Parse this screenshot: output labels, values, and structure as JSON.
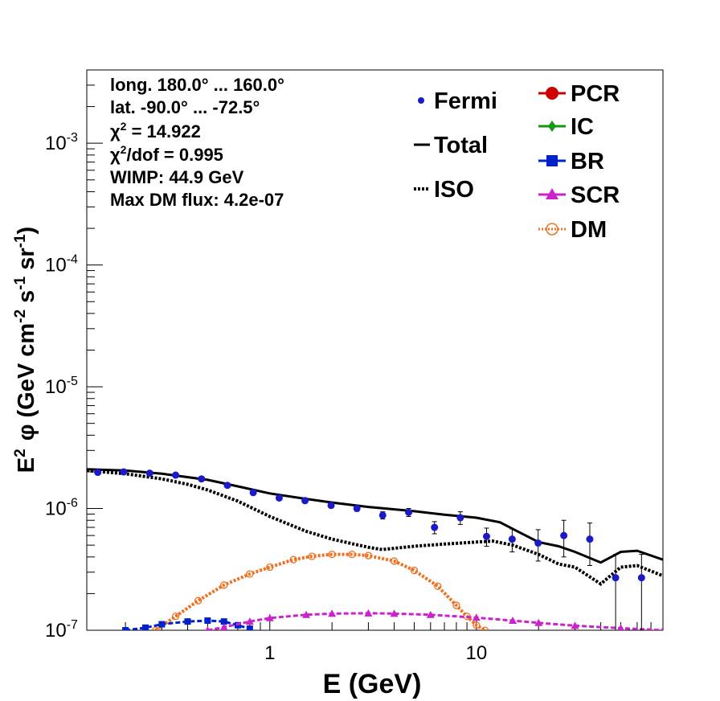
{
  "chart_data": {
    "type": "scatter",
    "title": "",
    "xlabel": "E (GeV)",
    "ylabel_parts": {
      "pre": "E",
      "sup1": "2",
      "phi": "φ (GeV cm",
      "sup2": "-2",
      "mid1": " s",
      "sup3": "-1",
      "mid2": " sr",
      "sup4": "-1",
      "end": ")"
    },
    "xscale": "log",
    "yscale": "log",
    "xlim": [
      0.13,
      80
    ],
    "ylim": [
      1e-07,
      0.004
    ],
    "x_ticks": [
      {
        "value": 1,
        "label": "1"
      },
      {
        "value": 10,
        "label": "10"
      }
    ],
    "y_ticks": [
      {
        "value": 1e-07,
        "base": "10",
        "exp": "-7"
      },
      {
        "value": 1e-06,
        "base": "10",
        "exp": "-6"
      },
      {
        "value": 1e-05,
        "base": "10",
        "exp": "-5"
      },
      {
        "value": 0.0001,
        "base": "10",
        "exp": "-4"
      },
      {
        "value": 0.001,
        "base": "10",
        "exp": "-3"
      }
    ],
    "info": {
      "line1": "long. 180.0° ... 160.0°",
      "line2": "lat. -90.0° ... -72.5°",
      "chi2_pre": "χ",
      "chi2_sup": "2",
      "chi2_post": " = 14.922",
      "chidof_pre": "χ",
      "chidof_sup": "2",
      "chidof_post": "/dof = 0.995",
      "line5": "WIMP: 44.9 GeV",
      "line6": "Max DM flux: 4.2e-07"
    },
    "legend": {
      "fermi": "Fermi",
      "total": "Total",
      "iso": "ISO",
      "pcr": "PCR",
      "ic": "IC",
      "br": "BR",
      "scr": "SCR",
      "dm": "DM"
    },
    "colors": {
      "fermi": "#1a1acc",
      "total": "#000000",
      "iso": "#000000",
      "pcr": "#cc0000",
      "ic": "#119911",
      "br": "#0022cc",
      "scr": "#cc22cc",
      "dm": "#f07020"
    },
    "series": [
      {
        "name": "Fermi",
        "kind": "points",
        "x": [
          0.147,
          0.196,
          0.262,
          0.35,
          0.467,
          0.623,
          0.831,
          1.11,
          1.48,
          1.98,
          2.64,
          3.52,
          4.7,
          6.27,
          8.36,
          11.2,
          14.9,
          19.9,
          26.5,
          35.4,
          47.2,
          63.0
        ],
        "y": [
          1.98e-06,
          2e-06,
          1.95e-06,
          1.88e-06,
          1.75e-06,
          1.55e-06,
          1.35e-06,
          1.22e-06,
          1.16e-06,
          1.06e-06,
          1e-06,
          8.8e-07,
          9.3e-07,
          7e-07,
          8.4e-07,
          5.9e-07,
          5.6e-07,
          5.2e-07,
          6e-07,
          5.6e-07,
          2.7e-07,
          2.7e-07
        ],
        "yerr_low": [
          5e-08,
          5e-08,
          5e-08,
          5e-08,
          5e-08,
          5e-08,
          5e-08,
          5e-08,
          5e-08,
          5e-08,
          5e-08,
          6e-08,
          7e-08,
          8e-08,
          1e-07,
          1e-07,
          1.2e-07,
          1.5e-07,
          2e-07,
          2.2e-07,
          1.7e-07,
          1.7e-07
        ],
        "yerr_high": [
          5e-08,
          5e-08,
          5e-08,
          5e-08,
          5e-08,
          5e-08,
          5e-08,
          5e-08,
          5e-08,
          5e-08,
          5e-08,
          6e-08,
          7e-08,
          8e-08,
          1e-07,
          1e-07,
          1.2e-07,
          1.5e-07,
          2e-07,
          2e-07,
          1.5e-07,
          1.5e-07
        ]
      },
      {
        "name": "Total",
        "kind": "line",
        "x": [
          0.13,
          0.2,
          0.3,
          0.5,
          0.7,
          1.0,
          1.5,
          2.0,
          3.0,
          5.0,
          7.0,
          10.0,
          13.0,
          15.0,
          20.0,
          25.0,
          30.0,
          40.0,
          50.0,
          60.0,
          80.0
        ],
        "y": [
          2.1e-06,
          2.05e-06,
          1.93e-06,
          1.72e-06,
          1.52e-06,
          1.33e-06,
          1.2e-06,
          1.12e-06,
          1.03e-06,
          9.5e-07,
          8.9e-07,
          8.4e-07,
          7.7e-07,
          6.8e-07,
          5.3e-07,
          4.9e-07,
          4.4e-07,
          3.6e-07,
          4.4e-07,
          4.5e-07,
          3.8e-07
        ]
      },
      {
        "name": "ISO",
        "kind": "dotted",
        "x": [
          0.13,
          0.2,
          0.3,
          0.4,
          0.5,
          0.7,
          1.0,
          1.5,
          2.0,
          3.0,
          3.5,
          5.0,
          7.0,
          10.0,
          12.0,
          15.0,
          20.0,
          25.0,
          30.0,
          40.0,
          50.0,
          60.0,
          80.0
        ],
        "y": [
          2.05e-06,
          1.93e-06,
          1.75e-06,
          1.58e-06,
          1.42e-06,
          1.15e-06,
          8.6e-07,
          6.5e-07,
          5.6e-07,
          4.8e-07,
          4.6e-07,
          4.9e-07,
          5.1e-07,
          5.3e-07,
          5.4e-07,
          5e-07,
          4.2e-07,
          3.5e-07,
          3.3e-07,
          2.4e-07,
          3.3e-07,
          3.4e-07,
          2.8e-07
        ]
      },
      {
        "name": "DM",
        "kind": "dm",
        "x": [
          0.28,
          0.35,
          0.45,
          0.6,
          0.8,
          1.0,
          1.3,
          1.6,
          2.0,
          2.5,
          3.0,
          4.0,
          5.0,
          6.5,
          8.0,
          9.0,
          10.0,
          11.0
        ],
        "y": [
          1e-07,
          1.3e-07,
          1.75e-07,
          2.35e-07,
          2.9e-07,
          3.3e-07,
          3.8e-07,
          4.05e-07,
          4.2e-07,
          4.2e-07,
          4.1e-07,
          3.7e-07,
          3.1e-07,
          2.3e-07,
          1.6e-07,
          1.3e-07,
          1.1e-07,
          1e-07
        ]
      },
      {
        "name": "BR",
        "kind": "br",
        "x": [
          0.2,
          0.25,
          0.3,
          0.4,
          0.5,
          0.6,
          0.7,
          0.8
        ],
        "y": [
          1e-07,
          1.05e-07,
          1.12e-07,
          1.18e-07,
          1.2e-07,
          1.18e-07,
          1.1e-07,
          1.03e-07
        ]
      },
      {
        "name": "SCR",
        "kind": "scr",
        "x": [
          0.5,
          0.6,
          0.8,
          1.0,
          1.5,
          2.0,
          3.0,
          4.0,
          6.0,
          10.0,
          15.0,
          20.0,
          30.0,
          50.0,
          80.0
        ],
        "y": [
          1e-07,
          1.06e-07,
          1.18e-07,
          1.26e-07,
          1.34e-07,
          1.37e-07,
          1.38e-07,
          1.37e-07,
          1.34e-07,
          1.27e-07,
          1.2e-07,
          1.15e-07,
          1.09e-07,
          1.04e-07,
          1e-07
        ]
      }
    ]
  }
}
